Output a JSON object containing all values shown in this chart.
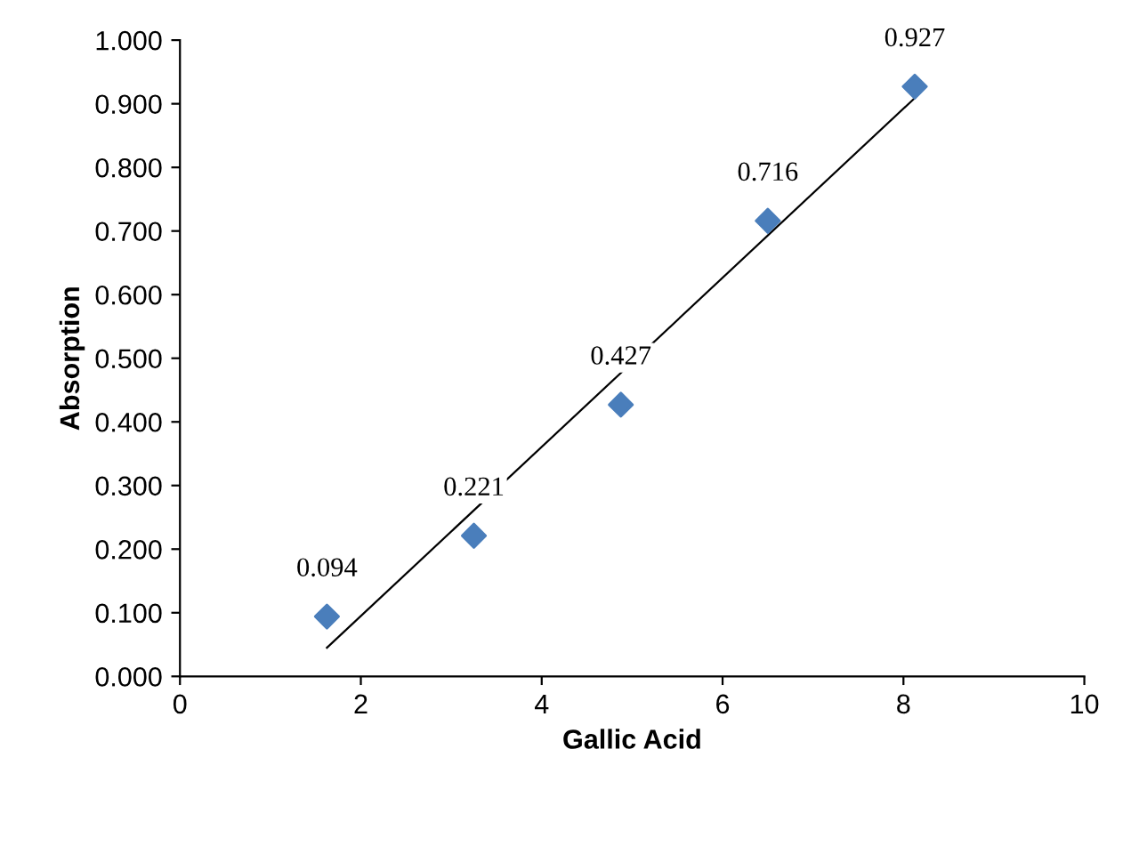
{
  "chart_data": {
    "type": "scatter",
    "xlabel": "Gallic Acid",
    "ylabel": "Absorption",
    "xlim": [
      0,
      10
    ],
    "xticks": [
      0,
      2,
      4,
      6,
      8,
      10
    ],
    "ylim": [
      0,
      1
    ],
    "yticks": [
      {
        "value": 0,
        "label": "0.000"
      },
      {
        "value": 0.1,
        "label": "0.100"
      },
      {
        "value": 0.2,
        "label": "0.200"
      },
      {
        "value": 0.3,
        "label": "0.300"
      },
      {
        "value": 0.4,
        "label": "0.400"
      },
      {
        "value": 0.5,
        "label": "0.500"
      },
      {
        "value": 0.6,
        "label": "0.600"
      },
      {
        "value": 0.7,
        "label": "0.700"
      },
      {
        "value": 0.8,
        "label": "0.800"
      },
      {
        "value": 0.9,
        "label": "0.900"
      },
      {
        "value": 1,
        "label": "1.000"
      }
    ],
    "series": [
      {
        "color": "#4a7ebb",
        "marker": "diamond",
        "x": [
          1.625,
          3.25,
          4.875,
          6.5,
          8.125
        ],
        "values": [
          0.094,
          0.221,
          0.427,
          0.716,
          0.927
        ],
        "value_labels": [
          "0.094",
          "0.221",
          "0.427",
          "0.716",
          "0.927"
        ]
      },
      {
        "type": "line",
        "color": "#000000",
        "x": [
          1.625,
          8.125
        ],
        "values": [
          0.045,
          0.909
        ]
      }
    ],
    "grid": false,
    "legend": false
  }
}
